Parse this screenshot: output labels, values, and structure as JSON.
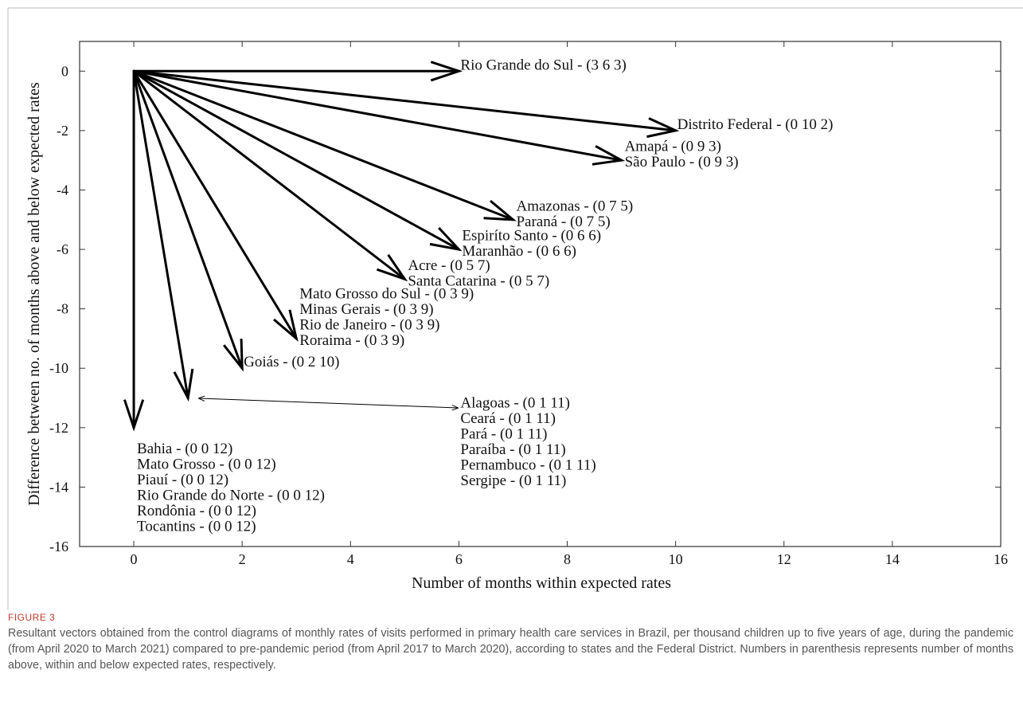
{
  "figure": {
    "label": "FIGURE 3",
    "caption": "Resultant vectors obtained from the control diagrams of monthly rates of visits performed in primary health care services in Brazil, per thousand children up to five years of age, during the pandemic (from April 2020 to March 2021) compared to pre-pandemic period (from April 2017 to March 2020), according to states and the Federal District. Numbers in parenthesis represents number of months above, within and below expected rates, respectively."
  },
  "colors": {
    "axis": "#333333",
    "arrow": "#000000",
    "frame": "#bbbbbb"
  },
  "chart_data": {
    "type": "vector",
    "title": "",
    "xlabel": "Number of months within expected rates",
    "ylabel": "Difference between no. of months above and below expected rates",
    "xlim": [
      -1,
      16
    ],
    "ylim": [
      -16,
      1
    ],
    "xticks": [
      0,
      2,
      4,
      6,
      8,
      10,
      12,
      14,
      16
    ],
    "yticks": [
      0,
      -2,
      -4,
      -6,
      -8,
      -10,
      -12,
      -14,
      -16
    ],
    "xtick_labels": [
      "0",
      "2",
      "4",
      "6",
      "8",
      "10",
      "12",
      "14",
      "16"
    ],
    "ytick_labels": [
      "0",
      "-2",
      "-4",
      "-6",
      "-8",
      "-10",
      "-12",
      "-14",
      "-16"
    ],
    "grid": false,
    "origin": [
      0,
      0
    ],
    "vectors": [
      {
        "x": 6,
        "y": 0,
        "labels": [
          "Rio Grande do Sul - (3 6 3)"
        ]
      },
      {
        "x": 10,
        "y": -2,
        "labels": [
          "Distrito Federal - (0 10 2)"
        ]
      },
      {
        "x": 9,
        "y": -3,
        "labels": [
          "Amapá - (0 9 3)",
          "São Paulo - (0 9 3)"
        ]
      },
      {
        "x": 7,
        "y": -5,
        "labels": [
          "Amazonas - (0 7 5)",
          "Paraná - (0 7 5)"
        ]
      },
      {
        "x": 6,
        "y": -6,
        "labels": [
          "Espiríto Santo - (0 6 6)",
          "Maranhão - (0 6 6)"
        ]
      },
      {
        "x": 5,
        "y": -7,
        "labels": [
          "Acre - (0 5 7)",
          "Santa Catarina - (0 5 7)"
        ]
      },
      {
        "x": 3,
        "y": -9,
        "labels": [
          "Mato Grosso do Sul - (0 3 9)",
          "Minas Gerais - (0 3 9)",
          "Rio de Janeiro - (0 3 9)",
          "Roraima - (0 3 9)"
        ]
      },
      {
        "x": 2,
        "y": -10,
        "labels": [
          "Goiás - (0 2 10)"
        ]
      },
      {
        "x": 1,
        "y": -11,
        "labels": [
          "Alagoas - (0 1 11)",
          "Ceará - (0 1 11)",
          "Pará - (0 1 11)",
          "Paraíba - (0 1 11)",
          "Pernambuco - (0 1 11)",
          "Sergipe - (0 1 11)"
        ]
      },
      {
        "x": 0,
        "y": -12,
        "labels": [
          "Bahia - (0 0 12)",
          "Mato Grosso - (0 0 12)",
          "Piauí - (0 0 12)",
          "Rio Grande do Norte - (0 0 12)",
          "Rondônia - (0 0 12)",
          "Tocantins - (0 0 12)"
        ]
      }
    ]
  }
}
